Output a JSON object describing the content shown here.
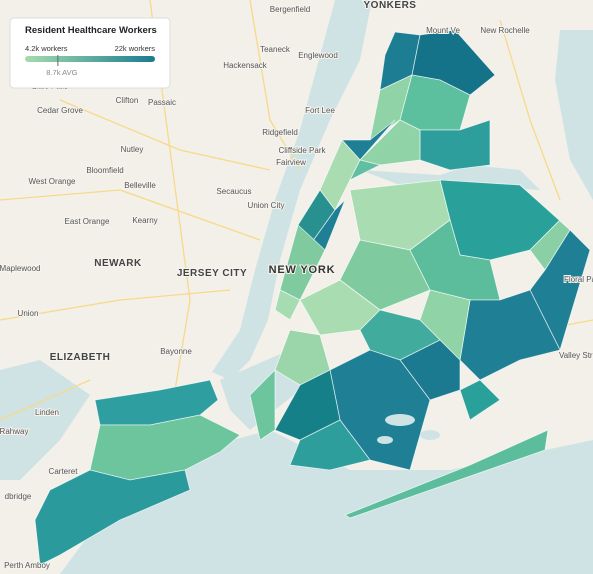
{
  "legend": {
    "title": "Resident Healthcare Workers",
    "min": {
      "value": 4200,
      "label": "4.2k workers"
    },
    "max": {
      "value": 22000,
      "label": "22k workers"
    },
    "avg": {
      "value": 8700,
      "label": "8.7k AVG"
    }
  },
  "places": [
    "Bergenfield",
    "YONKERS",
    "Mount Ve",
    "New Rochelle",
    "Teaneck",
    "Englewood",
    "Hackensack",
    "Little Falls",
    "Clifton",
    "Passaic",
    "Fort Lee",
    "Cedar Grove",
    "Ridgefield",
    "Nutley",
    "Cliffside Park",
    "Fairview",
    "West Orange",
    "Bloomfield",
    "Belleville",
    "Secaucus",
    "Union City",
    "East Orange",
    "Kearny",
    "Maplewood",
    "NEWARK",
    "JERSEY CITY",
    "NEW YORK",
    "Union",
    "ELIZABETH",
    "Bayonne",
    "Linden",
    "Rahway",
    "Carteret",
    "dbridge",
    "Floral Pa",
    "Valley Stre",
    "Perth Amboy"
  ]
}
